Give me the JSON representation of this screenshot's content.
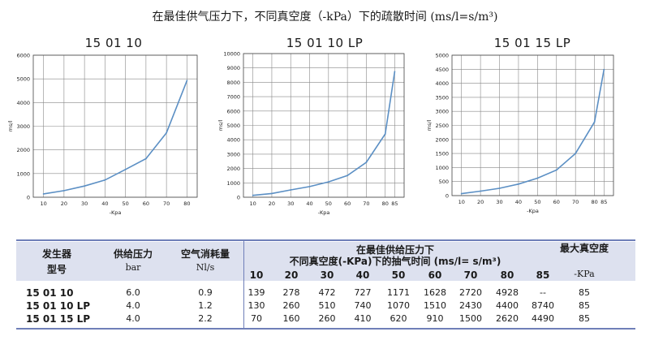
{
  "title": "在最佳供气压力下，不同真空度（-kPa）下的疏散时间 (ms/l=s/m³)",
  "colors": {
    "line": "#5b8fc4",
    "grid": "#888888",
    "axis": "#444444",
    "band": "#dde1ef",
    "rule": "#6f7fb8"
  },
  "chart_data": [
    {
      "type": "line",
      "title": "15 01 10",
      "xlabel": "-Kpa",
      "ylabel": "ms/l",
      "x": [
        10,
        20,
        30,
        40,
        50,
        60,
        70,
        80
      ],
      "values": [
        139,
        278,
        472,
        727,
        1171,
        1628,
        2720,
        4928
      ],
      "xlim": [
        5,
        85
      ],
      "ylim": [
        0,
        6000
      ],
      "xticks": [
        10,
        20,
        30,
        40,
        50,
        60,
        70,
        80
      ],
      "yticks": [
        0,
        1000,
        2000,
        3000,
        4000,
        5000,
        6000
      ]
    },
    {
      "type": "line",
      "title": "15 01 10 LP",
      "xlabel": "-Kpa",
      "ylabel": "ms/l",
      "x": [
        10,
        20,
        30,
        40,
        50,
        60,
        70,
        80,
        85
      ],
      "values": [
        130,
        260,
        510,
        740,
        1070,
        1510,
        2430,
        4400,
        8740
      ],
      "xlim": [
        5,
        90
      ],
      "ylim": [
        0,
        10000
      ],
      "xticks": [
        10,
        20,
        30,
        40,
        50,
        60,
        70,
        80,
        85
      ],
      "yticks": [
        0,
        1000,
        2000,
        3000,
        4000,
        5000,
        6000,
        7000,
        8000,
        9000,
        10000
      ]
    },
    {
      "type": "line",
      "title": "15 01 15 LP",
      "xlabel": "-Kpa",
      "ylabel": "ms/l",
      "x": [
        10,
        20,
        30,
        40,
        50,
        60,
        70,
        80,
        85
      ],
      "values": [
        70,
        160,
        260,
        410,
        620,
        910,
        1500,
        2620,
        4490
      ],
      "xlim": [
        5,
        90
      ],
      "ylim": [
        0,
        5000
      ],
      "xticks": [
        10,
        20,
        30,
        40,
        50,
        60,
        70,
        80,
        85
      ],
      "yticks": [
        0,
        500,
        1000,
        1500,
        2000,
        2500,
        3000,
        3500,
        4000,
        4500,
        5000
      ]
    }
  ],
  "table": {
    "col_generator": [
      "发生器",
      "型号"
    ],
    "col_pressure": [
      "供给压力",
      "bar"
    ],
    "col_consumption": [
      "空气消耗量",
      "Nl/s"
    ],
    "col_times": [
      "在最佳供给压力下",
      "不同真空度(-KPa)下的抽气时间 (ms/l= s/m³)"
    ],
    "col_max": [
      "最大真空度",
      "-KPa"
    ],
    "vacuum_levels": [
      "10",
      "20",
      "30",
      "40",
      "50",
      "60",
      "70",
      "80",
      "85"
    ],
    "rows": [
      {
        "model": "15 01 10",
        "pressure": "6.0",
        "consumption": "0.9",
        "times": [
          "139",
          "278",
          "472",
          "727",
          "1171",
          "1628",
          "2720",
          "4928",
          "--"
        ],
        "max": "85"
      },
      {
        "model": "15 01 10 LP",
        "pressure": "4.0",
        "consumption": "1.2",
        "times": [
          "130",
          "260",
          "510",
          "740",
          "1070",
          "1510",
          "2430",
          "4400",
          "8740"
        ],
        "max": "85"
      },
      {
        "model": "15 01 15 LP",
        "pressure": "4.0",
        "consumption": "2.2",
        "times": [
          "70",
          "160",
          "260",
          "410",
          "620",
          "910",
          "1500",
          "2620",
          "4490"
        ],
        "max": "85"
      }
    ]
  }
}
